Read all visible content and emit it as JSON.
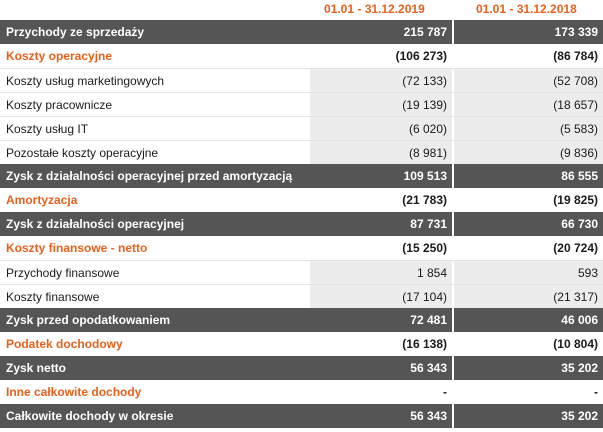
{
  "header": {
    "period_2019": "01.01 - 31.12.2019",
    "period_2018": "01.01 - 31.12.2018"
  },
  "rows": [
    {
      "label": "Przychody ze sprzedaży",
      "v2019": "215 787",
      "v2018": "173 339"
    },
    {
      "label": "Koszty operacyjne",
      "v2019": "(106 273)",
      "v2018": "(86 784)"
    },
    {
      "label": "Koszty usług marketingowych",
      "v2019": "(72 133)",
      "v2018": "(52 708)"
    },
    {
      "label": "Koszty pracownicze",
      "v2019": "(19 139)",
      "v2018": "(18 657)"
    },
    {
      "label": "Koszty usług IT",
      "v2019": "(6 020)",
      "v2018": "(5 583)"
    },
    {
      "label": "Pozostałe koszty operacyjne",
      "v2019": "(8 981)",
      "v2018": "(9 836)"
    },
    {
      "label": "Zysk z działalności operacyjnej przed amortyzacją",
      "v2019": "109 513",
      "v2018": "86 555"
    },
    {
      "label": "Amortyzacja",
      "v2019": "(21 783)",
      "v2018": "(19 825)"
    },
    {
      "label": "Zysk z działalności operacyjnej",
      "v2019": "87 731",
      "v2018": "66 730"
    },
    {
      "label": "Koszty finansowe - netto",
      "v2019": "(15 250)",
      "v2018": "(20 724)"
    },
    {
      "label": "Przychody finansowe",
      "v2019": "1 854",
      "v2018": "593"
    },
    {
      "label": "Koszty finansowe",
      "v2019": "(17 104)",
      "v2018": "(21 317)"
    },
    {
      "label": "Zysk przed opodatkowaniem",
      "v2019": "72 481",
      "v2018": "46 006"
    },
    {
      "label": "Podatek dochodowy",
      "v2019": "(16 138)",
      "v2018": "(10 804)"
    },
    {
      "label": "Zysk netto",
      "v2019": "56 343",
      "v2018": "35 202"
    },
    {
      "label": "Inne całkowite dochody",
      "v2019": "-",
      "v2018": "-"
    },
    {
      "label": "Całkowite dochody w okresie",
      "v2019": "56 343",
      "v2018": "35 202"
    }
  ],
  "colors": {
    "accent": "#e8601c",
    "dark_row": "#555555",
    "value_cell": "#ececec"
  }
}
